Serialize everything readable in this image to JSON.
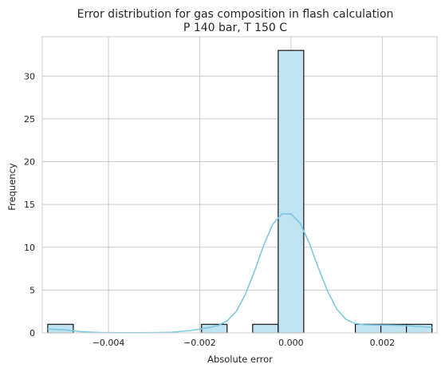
{
  "chart_data": {
    "type": "bar",
    "title": "Error distribution for gas composition in flash calculation",
    "subtitle": "P 140 bar, T 150 C",
    "xlabel": "Absolute error",
    "ylabel": "Frequency",
    "xlim": [
      -0.00545,
      0.0032
    ],
    "ylim": [
      0,
      34.6
    ],
    "xticks": [
      {
        "value": -0.004,
        "label": "−0.004"
      },
      {
        "value": -0.002,
        "label": "−0.002"
      },
      {
        "value": 0.0,
        "label": "0.000"
      },
      {
        "value": 0.002,
        "label": "0.002"
      }
    ],
    "yticks": [
      {
        "value": 0,
        "label": "0"
      },
      {
        "value": 5,
        "label": "5"
      },
      {
        "value": 10,
        "label": "10"
      },
      {
        "value": 15,
        "label": "15"
      },
      {
        "value": 20,
        "label": "20"
      },
      {
        "value": 25,
        "label": "25"
      },
      {
        "value": 30,
        "label": "30"
      }
    ],
    "grid": true,
    "bins": [
      {
        "x0": -0.00533,
        "x1": -0.00477,
        "count": 1
      },
      {
        "x0": -0.00196,
        "x1": -0.0014,
        "count": 1
      },
      {
        "x0": -0.00084,
        "x1": -0.00028,
        "count": 1
      },
      {
        "x0": -0.00028,
        "x1": 0.00028,
        "count": 33
      },
      {
        "x0": 0.00141,
        "x1": 0.00197,
        "count": 1
      },
      {
        "x0": 0.00197,
        "x1": 0.00253,
        "count": 1
      },
      {
        "x0": 0.00253,
        "x1": 0.00309,
        "count": 1
      }
    ],
    "kde": {
      "x": [
        -0.00533,
        -0.005,
        -0.0046,
        -0.0042,
        -0.0038,
        -0.0034,
        -0.003,
        -0.0026,
        -0.0022,
        -0.002,
        -0.0018,
        -0.0016,
        -0.0014,
        -0.0012,
        -0.001,
        -0.0008,
        -0.0006,
        -0.0004,
        -0.0002,
        0.0,
        0.0002,
        0.0004,
        0.0006,
        0.0008,
        0.001,
        0.0012,
        0.0014,
        0.0016,
        0.0018,
        0.002,
        0.0022,
        0.0024,
        0.0026,
        0.0028,
        0.003,
        0.00309
      ],
      "y": [
        0.45,
        0.38,
        0.15,
        0.04,
        0.02,
        0.02,
        0.03,
        0.08,
        0.28,
        0.45,
        0.62,
        0.85,
        1.4,
        2.5,
        4.5,
        7.2,
        10.2,
        12.7,
        13.9,
        13.9,
        12.8,
        10.5,
        7.6,
        4.9,
        2.8,
        1.6,
        1.1,
        0.95,
        0.93,
        0.92,
        0.9,
        0.87,
        0.82,
        0.75,
        0.67,
        0.63
      ]
    },
    "colors": {
      "bar_fill": "#bfe3f1",
      "bar_edge": "#000000",
      "kde_line": "#7ec8e3",
      "grid": "#cccccc",
      "axis": "#cccccc"
    }
  }
}
